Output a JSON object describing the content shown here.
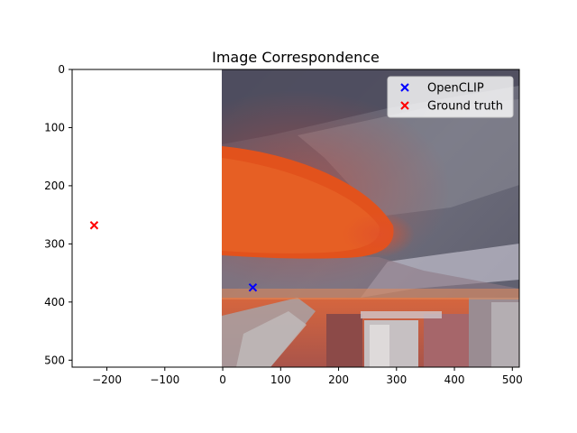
{
  "chart_data": {
    "type": "scatter",
    "title": "Image Correspondence",
    "xlabel": "",
    "ylabel": "",
    "xlim": [
      -260,
      512
    ],
    "ylim": [
      512,
      0
    ],
    "y_inverted": true,
    "grid": false,
    "legend_placement": "top-right",
    "x_ticks": [
      -200,
      -100,
      0,
      100,
      200,
      300,
      400,
      500
    ],
    "x_tick_labels": [
      "−200",
      "−100",
      "0",
      "100",
      "200",
      "300",
      "400",
      "500"
    ],
    "y_ticks": [
      0,
      100,
      200,
      300,
      400,
      500
    ],
    "y_tick_labels": [
      "0",
      "100",
      "200",
      "300",
      "400",
      "500"
    ],
    "image_extent": {
      "x": [
        0,
        512
      ],
      "y": [
        0,
        512
      ]
    },
    "series": [
      {
        "name": "OpenCLIP",
        "marker": "x",
        "color": "#0000ff",
        "points": [
          [
            52,
            375
          ]
        ]
      },
      {
        "name": "Ground truth",
        "marker": "x",
        "color": "#ff0000",
        "points": [
          [
            -222,
            268
          ]
        ]
      }
    ]
  }
}
